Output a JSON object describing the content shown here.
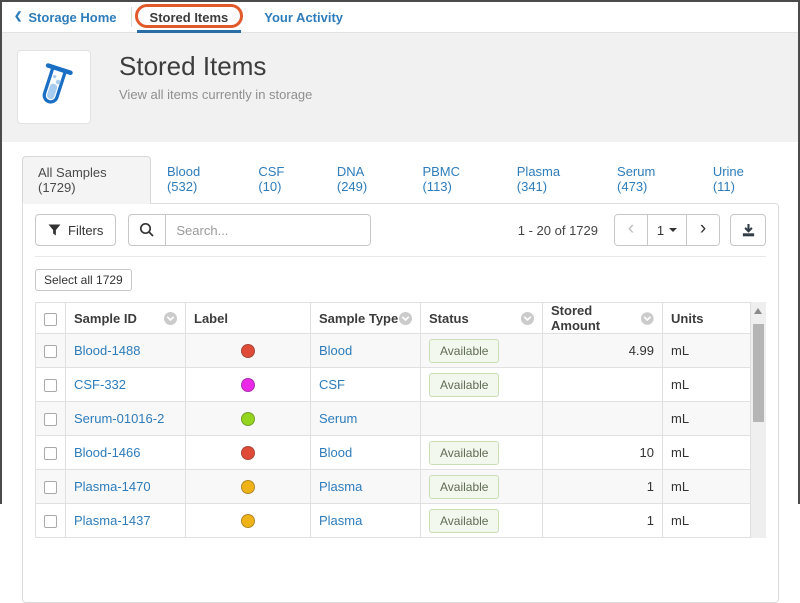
{
  "topnav": {
    "back_label": "Storage Home",
    "current_label": "Stored Items",
    "activity_label": "Your Activity"
  },
  "header": {
    "title": "Stored Items",
    "subtitle": "View all items currently in storage",
    "icon": "test-tube-icon"
  },
  "sample_tabs": [
    {
      "label": "All Samples (1729)",
      "active": true
    },
    {
      "label": "Blood (532)",
      "active": false
    },
    {
      "label": "CSF (10)",
      "active": false
    },
    {
      "label": "DNA (249)",
      "active": false
    },
    {
      "label": "PBMC (113)",
      "active": false
    },
    {
      "label": "Plasma (341)",
      "active": false
    },
    {
      "label": "Serum (473)",
      "active": false
    },
    {
      "label": "Urine (11)",
      "active": false
    }
  ],
  "toolbar": {
    "filters_label": "Filters",
    "search_placeholder": "Search...",
    "pagination": {
      "range_text": "1 - 20 of 1729",
      "page": "1"
    }
  },
  "select_all_label": "Select all 1729",
  "table": {
    "columns": [
      {
        "label": "Sample ID",
        "sortable": true
      },
      {
        "label": "Label",
        "sortable": false
      },
      {
        "label": "Sample Type",
        "sortable": true
      },
      {
        "label": "Status",
        "sortable": true
      },
      {
        "label": "Stored Amount",
        "sortable": true
      },
      {
        "label": "Units",
        "sortable": false
      }
    ],
    "rows": [
      {
        "sample_id": "Blood-1488",
        "label_color": "#e04b38",
        "sample_type": "Blood",
        "status": "Available",
        "stored_amount": "4.99",
        "units": "mL"
      },
      {
        "sample_id": "CSF-332",
        "label_color": "#ea28e8",
        "sample_type": "CSF",
        "status": "Available",
        "stored_amount": "",
        "units": "mL"
      },
      {
        "sample_id": "Serum-01016-2",
        "label_color": "#96d51f",
        "sample_type": "Serum",
        "status": "",
        "stored_amount": "",
        "units": "mL"
      },
      {
        "sample_id": "Blood-1466",
        "label_color": "#e04b38",
        "sample_type": "Blood",
        "status": "Available",
        "stored_amount": "10",
        "units": "mL"
      },
      {
        "sample_id": "Plasma-1470",
        "label_color": "#f0b317",
        "sample_type": "Plasma",
        "status": "Available",
        "stored_amount": "1",
        "units": "mL"
      },
      {
        "sample_id": "Plasma-1437",
        "label_color": "#f0b317",
        "sample_type": "Plasma",
        "status": "Available",
        "stored_amount": "1",
        "units": "mL"
      }
    ]
  },
  "colors": {
    "link": "#2e7cba",
    "annotation_orange": "#e2592b",
    "active_underline": "#2a6da6",
    "available_badge_bg": "#f3f8ee",
    "available_badge_border": "#c9ddb8",
    "tube_icon_blue": "#1a6fc4",
    "tube_icon_light_blue": "#a9cdef"
  },
  "icons": [
    "back-chevron-icon",
    "test-tube-icon",
    "funnel-icon",
    "search-icon",
    "prev-page-icon",
    "next-page-icon",
    "caret-down-icon",
    "download-icon",
    "sort-chevron-icon"
  ]
}
